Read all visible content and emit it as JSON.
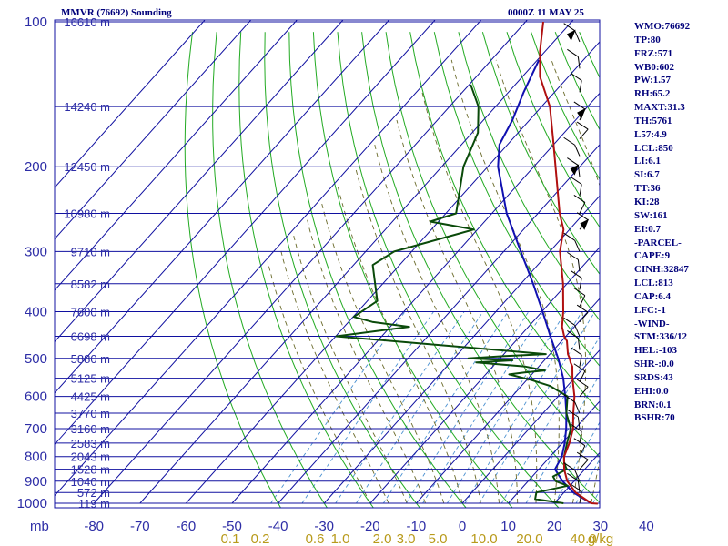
{
  "header": {
    "left": "MMVR (76692) Sounding",
    "right": "0000Z 11 MAY 25"
  },
  "indices": [
    "WMO:76692",
    "TP:80",
    "FRZ:571",
    "WB0:602",
    "PW:1.57",
    "RH:65.2",
    "MAXT:31.3",
    "TH:5761",
    "L57:4.9",
    "LCL:850",
    "LI:6.1",
    "SI:6.7",
    "TT:36",
    "KI:28",
    "SW:161",
    "EI:0.7",
    "-PARCEL-",
    "CAPE:9",
    "CINH:32847",
    "LCL:813",
    "CAP:6.4",
    "LFC:-1",
    "-WIND-",
    "STM:336/12",
    "HEL:-103",
    "SHR-:0.0",
    "SRDS:43",
    "EHI:0.0",
    "BRN:0.1",
    "BSHR:70"
  ],
  "colors": {
    "isobar": "#1010a0",
    "isotherm": "#1010a0",
    "dry_adiabat": "#22aa22",
    "moist_adiabat": "#6a6a2a",
    "mixing_ratio": "#4a90d0",
    "temperature": "#b01010",
    "dewpoint": "#0a4a0a",
    "parcel": "#1010b0",
    "barb": "#000000"
  },
  "chart_data": {
    "type": "skew-t",
    "pressure_axis_unit": "mb",
    "pressure_ticks": [
      "100",
      "200",
      "300",
      "400",
      "500",
      "600",
      "700",
      "800",
      "900",
      "1000"
    ],
    "pressure_levels": [
      100,
      150,
      200,
      250,
      300,
      350,
      400,
      450,
      500,
      550,
      600,
      650,
      700,
      750,
      800,
      850,
      900,
      950,
      1000
    ],
    "temperature_ticks": [
      "-80",
      "-70",
      "-60",
      "-50",
      "-40",
      "-30",
      "-20",
      "-10",
      "0",
      "10",
      "20",
      "30",
      "40"
    ],
    "temperature_values": [
      -80,
      -70,
      -60,
      -50,
      -40,
      -30,
      -20,
      -10,
      0,
      10,
      20,
      30,
      40
    ],
    "mixing_ratio_ticks": [
      "0.1",
      "0.2",
      "0.6",
      "1.0",
      "2.0",
      "3.0",
      "5.0",
      "10.0",
      "20.0",
      "40.0",
      "g/kg"
    ],
    "height_labels": [
      {
        "p": 100,
        "label": "16610 m"
      },
      {
        "p": 150,
        "label": "14240 m"
      },
      {
        "p": 200,
        "label": "12450 m"
      },
      {
        "p": 250,
        "label": "10980 m"
      },
      {
        "p": 300,
        "label": "9710 m"
      },
      {
        "p": 350,
        "label": "8582 m"
      },
      {
        "p": 400,
        "label": "7600 m"
      },
      {
        "p": 450,
        "label": "6698 m"
      },
      {
        "p": 500,
        "label": "5880 m"
      },
      {
        "p": 550,
        "label": "5125 m"
      },
      {
        "p": 600,
        "label": "4425 m"
      },
      {
        "p": 650,
        "label": "3770 m"
      },
      {
        "p": 700,
        "label": "3160 m"
      },
      {
        "p": 750,
        "label": "2583 m"
      },
      {
        "p": 800,
        "label": "2043 m"
      },
      {
        "p": 850,
        "label": "1528 m"
      },
      {
        "p": 900,
        "label": "1040 m"
      },
      {
        "p": 950,
        "label": "572 m"
      },
      {
        "p": 1000,
        "label": "119 m"
      }
    ],
    "temperature": [
      [
        1002,
        29.5
      ],
      [
        1000,
        28.0
      ],
      [
        950,
        22.5
      ],
      [
        900,
        18.5
      ],
      [
        850,
        15.5
      ],
      [
        800,
        13.0
      ],
      [
        750,
        11.5
      ],
      [
        700,
        9.5
      ],
      [
        650,
        6.5
      ],
      [
        600,
        3.5
      ],
      [
        550,
        -0.5
      ],
      [
        520,
        -2.8
      ],
      [
        510,
        -4.0
      ],
      [
        500,
        -5.0
      ],
      [
        490,
        -6.2
      ],
      [
        460,
        -9.0
      ],
      [
        450,
        -10.5
      ],
      [
        430,
        -12.8
      ],
      [
        400,
        -15.5
      ],
      [
        350,
        -21.0
      ],
      [
        300,
        -28.0
      ],
      [
        270,
        -31.5
      ],
      [
        250,
        -35.5
      ],
      [
        200,
        -45.5
      ],
      [
        175,
        -51.5
      ],
      [
        150,
        -58.5
      ],
      [
        130,
        -66.5
      ],
      [
        115,
        -71.5
      ],
      [
        100,
        -76.5
      ]
    ],
    "dewpoint": [
      [
        1000,
        22.0
      ],
      [
        980,
        15.0
      ],
      [
        950,
        14.0
      ],
      [
        920,
        19.5
      ],
      [
        900,
        16.0
      ],
      [
        880,
        14.5
      ],
      [
        850,
        16.0
      ],
      [
        820,
        14.0
      ],
      [
        800,
        13.0
      ],
      [
        750,
        11.0
      ],
      [
        700,
        9.0
      ],
      [
        650,
        5.0
      ],
      [
        600,
        2.0
      ],
      [
        570,
        -4.0
      ],
      [
        555,
        -9.0
      ],
      [
        540,
        -15.0
      ],
      [
        535,
        -12.0
      ],
      [
        530,
        -8.0
      ],
      [
        520,
        -13.0
      ],
      [
        510,
        -24.5
      ],
      [
        505,
        -17.0
      ],
      [
        500,
        -27.0
      ],
      [
        495,
        -20.0
      ],
      [
        490,
        -11.0
      ],
      [
        470,
        -35.0
      ],
      [
        450,
        -60.0
      ],
      [
        430,
        -46.0
      ],
      [
        420,
        -55.0
      ],
      [
        410,
        -60.0
      ],
      [
        380,
        -58.0
      ],
      [
        320,
        -66.0
      ],
      [
        300,
        -64.0
      ],
      [
        270,
        -51.0
      ],
      [
        260,
        -62.0
      ],
      [
        250,
        -58.0
      ],
      [
        200,
        -65.5
      ],
      [
        170,
        -69.0
      ],
      [
        150,
        -74.0
      ],
      [
        135,
        -80.0
      ]
    ],
    "parcel": [
      [
        1000,
        28.0
      ],
      [
        950,
        22.0
      ],
      [
        900,
        17.5
      ],
      [
        850,
        13.5
      ],
      [
        800,
        12.5
      ],
      [
        750,
        10.5
      ],
      [
        700,
        8.0
      ],
      [
        650,
        5.0
      ],
      [
        600,
        1.5
      ],
      [
        550,
        -2.5
      ],
      [
        500,
        -7.5
      ],
      [
        450,
        -13.5
      ],
      [
        400,
        -20.0
      ],
      [
        350,
        -27.5
      ],
      [
        300,
        -36.5
      ],
      [
        250,
        -47.0
      ],
      [
        200,
        -58.0
      ],
      [
        180,
        -62.0
      ],
      [
        160,
        -64.0
      ],
      [
        140,
        -67.0
      ],
      [
        120,
        -70.0
      ]
    ],
    "wind_barbs_note": "wind profile shown as barbs on right margin"
  }
}
